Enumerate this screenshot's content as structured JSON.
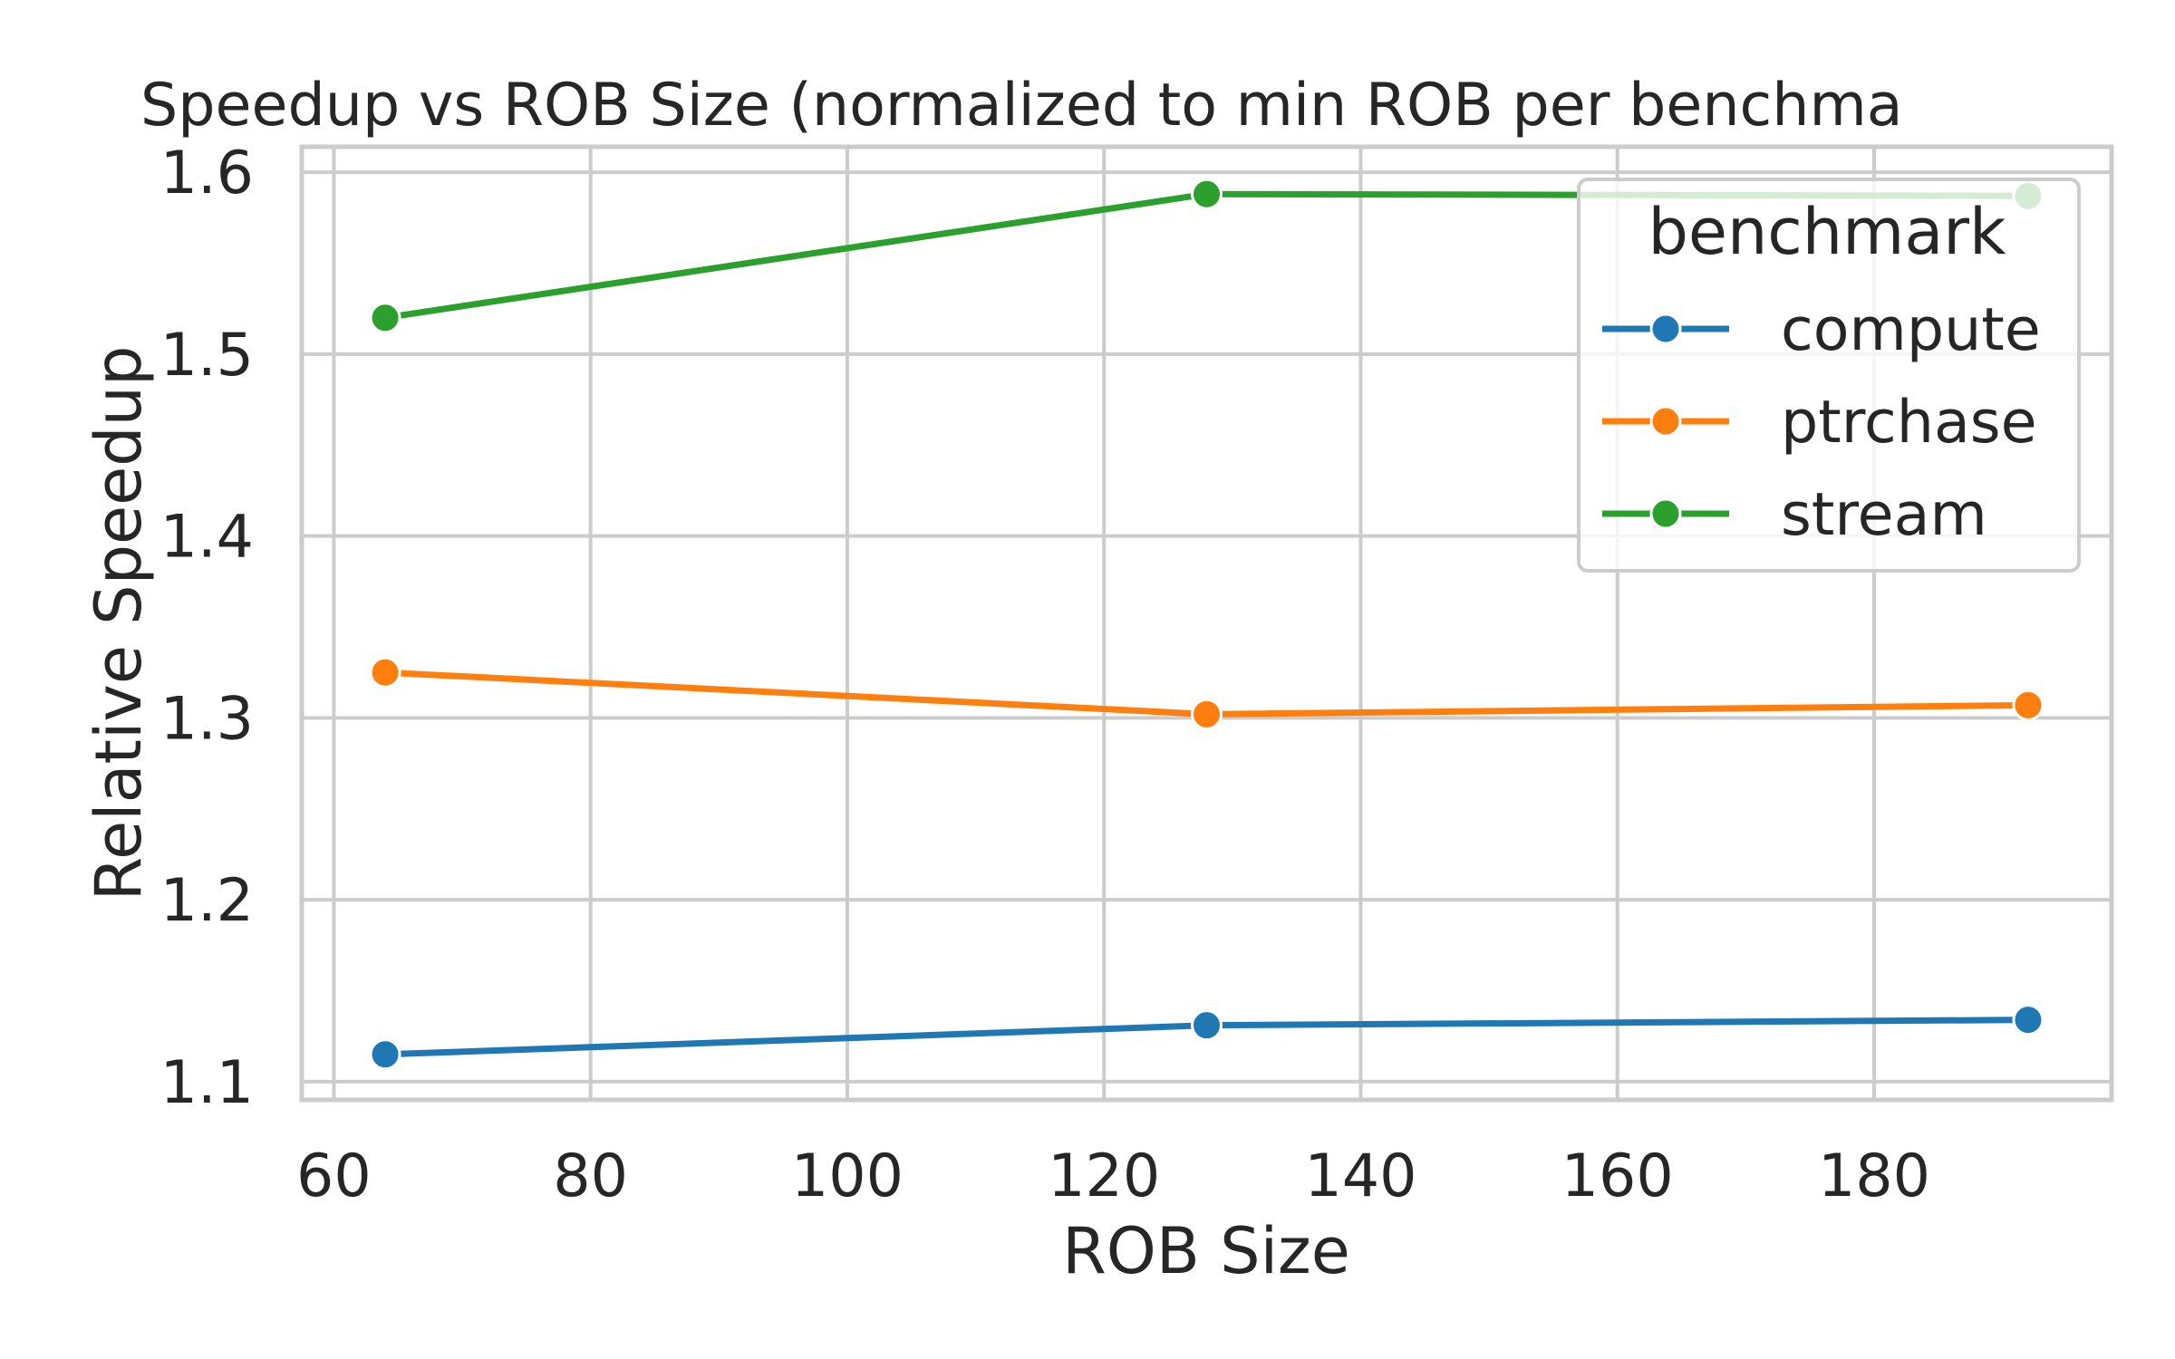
{
  "chart_data": {
    "type": "line",
    "title": "Speedup vs ROB Size (normalized to min ROB per benchma",
    "xlabel": "ROB Size",
    "ylabel": "Relative Speedup",
    "x": [
      64,
      128,
      192
    ],
    "xlim": [
      57.5,
      198.5
    ],
    "ylim": [
      1.09,
      1.614
    ],
    "xticks": [
      60,
      80,
      100,
      120,
      140,
      160,
      180
    ],
    "xtick_labels": [
      "60",
      "80",
      "100",
      "120",
      "140",
      "160",
      "180"
    ],
    "yticks": [
      1.1,
      1.2,
      1.3,
      1.4,
      1.5,
      1.6
    ],
    "ytick_labels": [
      "1.1",
      "1.2",
      "1.3",
      "1.4",
      "1.5",
      "1.6"
    ],
    "grid": true,
    "legend": {
      "title": "benchmark",
      "placement": "top-right"
    },
    "series": [
      {
        "name": "compute",
        "color": "#1f77b4",
        "values": [
          1.115,
          1.131,
          1.134
        ]
      },
      {
        "name": "ptrchase",
        "color": "#ff7f0e",
        "values": [
          1.325,
          1.302,
          1.307
        ]
      },
      {
        "name": "stream",
        "color": "#2ca02c",
        "values": [
          1.52,
          1.588,
          1.587
        ]
      }
    ]
  }
}
